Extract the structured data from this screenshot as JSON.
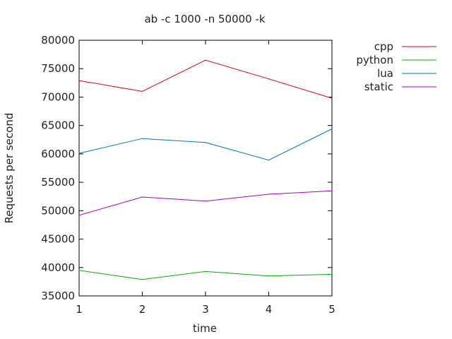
{
  "chart_data": {
    "type": "line",
    "title": "ab -c 1000 -n 50000 -k",
    "xlabel": "time",
    "ylabel": "Requests per second",
    "x": [
      1,
      2,
      3,
      4,
      5
    ],
    "xlim": [
      1,
      5
    ],
    "ylim": [
      35000,
      80000
    ],
    "xticks": [
      1,
      2,
      3,
      4,
      5
    ],
    "yticks": [
      35000,
      40000,
      45000,
      50000,
      55000,
      60000,
      65000,
      70000,
      75000,
      80000
    ],
    "grid": false,
    "legend_position": "right",
    "series": [
      {
        "name": "cpp",
        "color": "#dd0000",
        "values": [
          72900,
          71000,
          76500,
          73200,
          69800
        ]
      },
      {
        "name": "python",
        "color": "#00aa00",
        "values": [
          39500,
          37900,
          39300,
          38500,
          38800
        ]
      },
      {
        "name": "lua",
        "color": "#0070c0",
        "values": [
          60100,
          62700,
          62000,
          58900,
          64400
        ]
      },
      {
        "name": "static",
        "color": "#a000c8",
        "values": [
          49200,
          52400,
          51700,
          52900,
          53500
        ]
      }
    ]
  }
}
